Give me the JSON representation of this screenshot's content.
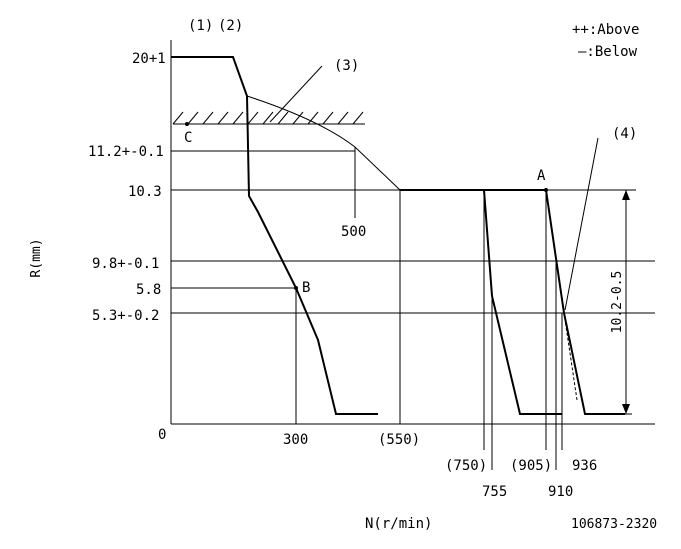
{
  "legend": {
    "above": "++:Above",
    "below": "—:Below"
  },
  "labels": {
    "n1": "(1)",
    "n2": "(2)",
    "n3": "(3)",
    "n4": "(4)",
    "pointA": "A",
    "pointB": "B",
    "pointC": "C"
  },
  "y_axis": {
    "title": "R(mm)",
    "ticks": [
      "20+1",
      "11.2+-0.1",
      "10.3",
      "9.8+-0.1",
      "5.8",
      "5.3+-0.2",
      "0"
    ]
  },
  "x_axis": {
    "title": "N(r/min)",
    "ticks": [
      "300",
      "(550)",
      "(750)",
      "755",
      "(905)",
      "910",
      "936"
    ]
  },
  "annotations": {
    "n500": "500",
    "dimension": "10.2-0.5"
  },
  "figure_id": "106873-2320"
}
